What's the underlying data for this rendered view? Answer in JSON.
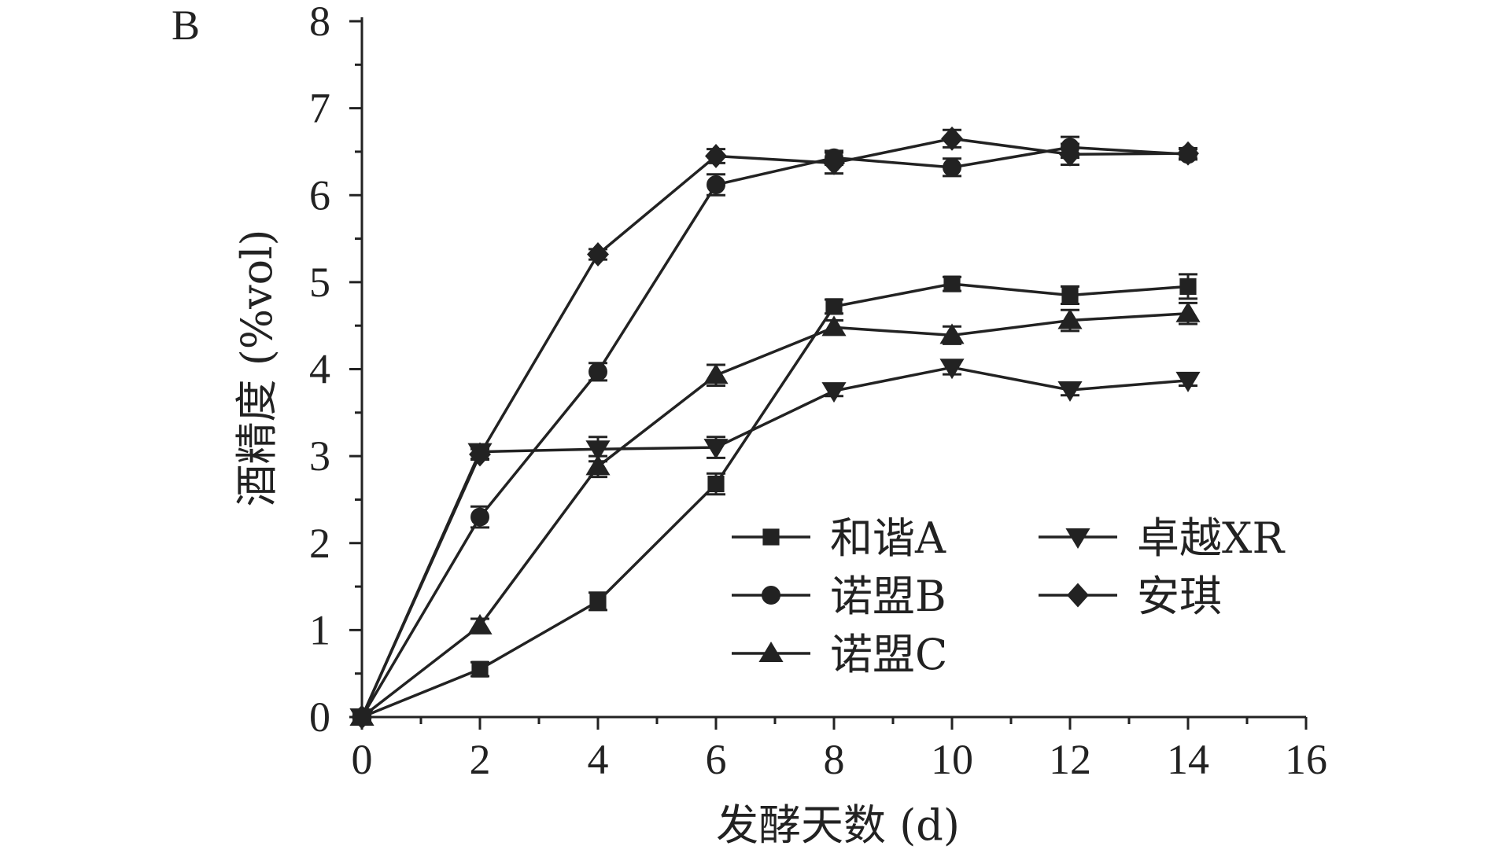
{
  "chart_data": {
    "type": "line",
    "panel_label": "B",
    "xlabel": "发酵天数 (d)",
    "ylabel": "酒精度 (%vol)",
    "xlim": [
      0,
      16
    ],
    "ylim": [
      0,
      8
    ],
    "xticks": [
      0,
      2,
      4,
      6,
      8,
      10,
      12,
      14,
      16
    ],
    "yticks": [
      0,
      1,
      2,
      3,
      4,
      5,
      6,
      7,
      8
    ],
    "grid": false,
    "legend_position": "lower-right",
    "x": [
      0,
      2,
      4,
      6,
      8,
      10,
      12,
      14
    ],
    "series": [
      {
        "name": "和谐A",
        "marker": "square",
        "values": [
          0,
          0.55,
          1.33,
          2.68,
          4.72,
          4.98,
          4.85,
          4.95
        ],
        "errors": [
          0.03,
          0.08,
          0.1,
          0.12,
          0.08,
          0.08,
          0.1,
          0.14
        ]
      },
      {
        "name": "诺盟B",
        "marker": "circle",
        "values": [
          0,
          2.3,
          3.97,
          6.12,
          6.43,
          6.32,
          6.55,
          6.47
        ],
        "errors": [
          0.03,
          0.12,
          0.1,
          0.12,
          0.08,
          0.1,
          0.12,
          0.06
        ]
      },
      {
        "name": "诺盟C",
        "marker": "triangle-up",
        "values": [
          0,
          1.05,
          2.88,
          3.93,
          4.48,
          4.39,
          4.56,
          4.64
        ],
        "errors": [
          0.03,
          0.08,
          0.12,
          0.12,
          0.08,
          0.1,
          0.12,
          0.12
        ]
      },
      {
        "name": "卓越XR",
        "marker": "triangle-down",
        "values": [
          0,
          3.05,
          3.08,
          3.1,
          3.75,
          4.02,
          3.76,
          3.87
        ],
        "errors": [
          0.03,
          0.08,
          0.14,
          0.12,
          0.06,
          0.08,
          0.06,
          0.06
        ]
      },
      {
        "name": "安琪",
        "marker": "diamond",
        "values": [
          0,
          3.02,
          5.32,
          6.45,
          6.37,
          6.65,
          6.47,
          6.48
        ],
        "errors": [
          0.03,
          0.06,
          0.06,
          0.08,
          0.12,
          0.1,
          0.12,
          0.06
        ]
      }
    ]
  }
}
